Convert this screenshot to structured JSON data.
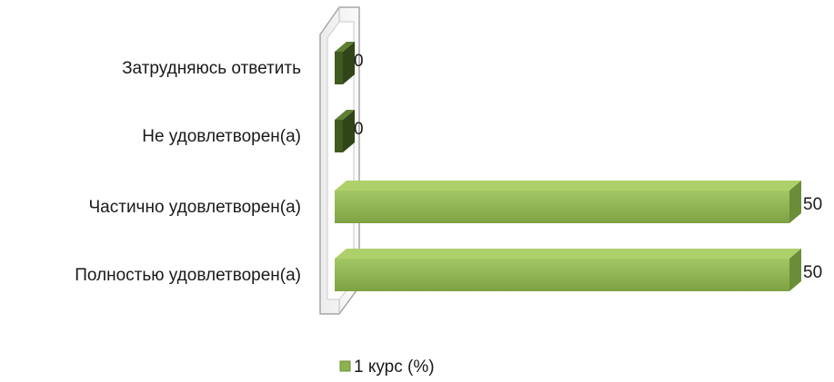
{
  "chart_data": {
    "type": "bar",
    "orientation": "horizontal",
    "style": "3d",
    "categories": [
      "Затрудняюсь ответить",
      "Не удовлетворен(а)",
      "Частично удовлетворен(а)",
      "Полностью удовлетворен(а)"
    ],
    "series": [
      {
        "name": "1 курс (%)",
        "values": [
          0,
          0,
          50,
          50
        ],
        "color": "#8db350"
      }
    ],
    "data_labels": [
      "0",
      "0",
      "50",
      "50"
    ],
    "xlim": [
      0,
      50
    ],
    "title": "",
    "xlabel": "",
    "ylabel": "",
    "grid": false,
    "legend_position": "bottom"
  },
  "colors": {
    "bar_front": "#8db350",
    "bar_top": "#aed06a",
    "bar_side": "#6c8d38",
    "zero_bar_front": "#3f5a1f",
    "zero_bar_top": "#5f7f33",
    "wall_border": "#a6a6a6",
    "wall_fill": "#f4f4f4"
  },
  "legend": {
    "label": "1 курс (%)",
    "icon": "green-square-icon"
  }
}
